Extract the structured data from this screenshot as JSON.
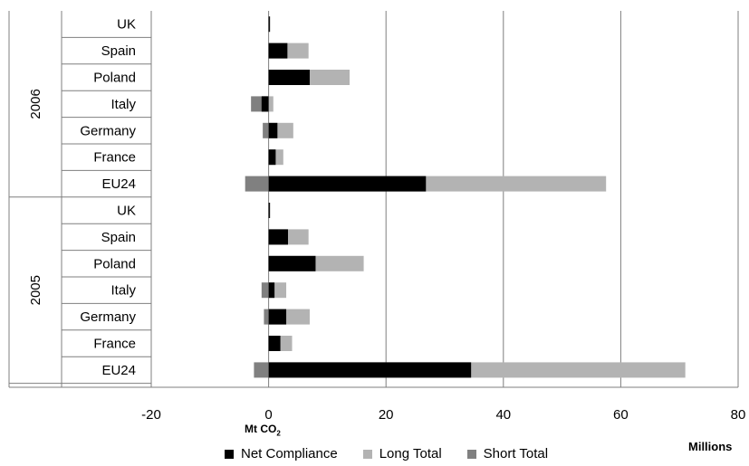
{
  "chart_data": {
    "type": "bar",
    "orientation": "horizontal",
    "stacked": true,
    "xlabel": "Mt CO",
    "xlabel_subscript": "2",
    "unit_label": "Millions",
    "xlim": [
      -20,
      80
    ],
    "xticks": [
      "-20",
      "0",
      "20",
      "40",
      "60",
      "80"
    ],
    "grid": true,
    "legend_position": "bottom",
    "groups": [
      {
        "name": "2006",
        "categories": [
          "UK",
          "Spain",
          "Poland",
          "Italy",
          "Germany",
          "France",
          "EU24"
        ]
      },
      {
        "name": "2005",
        "categories": [
          "UK",
          "Spain",
          "Poland",
          "Italy",
          "Germany",
          "France",
          "EU24"
        ]
      }
    ],
    "series": [
      {
        "name": "Net Compliance",
        "color": "#000000",
        "values_2006": [
          0.2,
          3.2,
          7.0,
          -1.2,
          1.5,
          1.2,
          26.8
        ],
        "values_2005": [
          0.2,
          3.3,
          8.0,
          1.0,
          3.0,
          2.0,
          34.5
        ]
      },
      {
        "name": "Long Total",
        "color": "#b3b3b3",
        "values_2006": [
          0.3,
          6.8,
          13.8,
          0.8,
          4.2,
          2.5,
          57.5
        ],
        "values_2005": [
          0.3,
          6.8,
          16.2,
          3.0,
          7.0,
          4.0,
          71.0
        ]
      },
      {
        "name": "Short Total",
        "color": "#808080",
        "values_2006": [
          0,
          0,
          0,
          -3.0,
          -1.0,
          0,
          -4.0
        ],
        "values_2005": [
          0,
          0,
          0,
          -1.2,
          -0.8,
          0,
          -2.5
        ]
      }
    ]
  }
}
